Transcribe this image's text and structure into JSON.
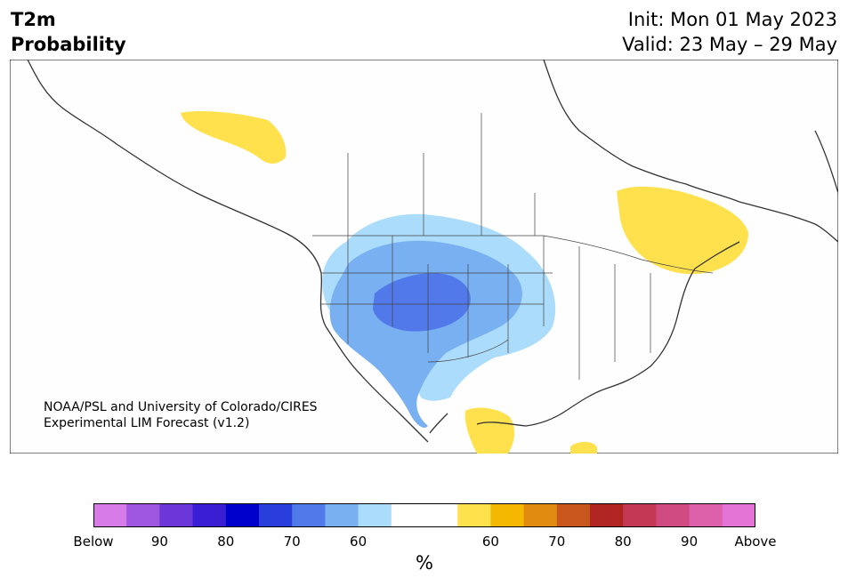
{
  "header": {
    "variable": "T2m",
    "product": "Probability",
    "init": "Init: Mon 01 May 2023",
    "valid": "Valid: 23 May – 29 May"
  },
  "credit": {
    "line1": "NOAA/PSL and University of Colorado/CIRES",
    "line2": "Experimental LIM Forecast (v1.2)"
  },
  "colorbar": {
    "unit": "%",
    "colors": [
      "#d77be8",
      "#9e55e0",
      "#6b37d9",
      "#3a1ed4",
      "#0000cc",
      "#2a3ddd",
      "#5179ea",
      "#78b0f2",
      "#acdcfb",
      "#ffffff",
      "#ffffff",
      "#ffe14d",
      "#f4b800",
      "#e08a10",
      "#c9561a",
      "#b02424",
      "#c33955",
      "#d04c80",
      "#dc60aa",
      "#e474d6"
    ],
    "ticks": [
      "Below",
      "90",
      "80",
      "70",
      "60",
      "60",
      "70",
      "80",
      "90",
      "Above"
    ]
  },
  "map": {
    "features": {
      "land_color": "#fefefe",
      "coastline_color": "#333333",
      "below_levels": [
        "60",
        "70",
        "80"
      ],
      "above_level": "60",
      "below_regions": "western United States centered on Utah and Colorado",
      "above_regions": [
        "northern Alberta/Northwest Territories",
        "Quebec and southern Ontario",
        "northern Mexico"
      ]
    }
  }
}
